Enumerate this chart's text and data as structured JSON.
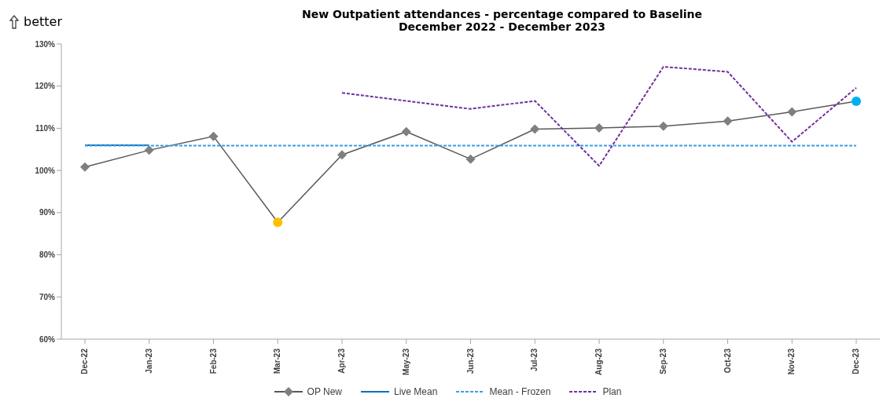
{
  "chart_data": {
    "type": "line",
    "title": "New Outpatient attendances - percentage compared to Baseline",
    "subtitle": "December 2022 - December 2023",
    "annotations": [
      "better"
    ],
    "categories": [
      "Dec-22",
      "Jan-23",
      "Feb-23",
      "Mar-23",
      "Apr-23",
      "May-23",
      "Jun-23",
      "Jul-23",
      "Aug-23",
      "Sep-23",
      "Oct-23",
      "Nov-23",
      "Dec-23"
    ],
    "series": [
      {
        "name": "OP New",
        "color": "#595959",
        "marker": "diamond",
        "values": [
          100.8,
          104.8,
          108.1,
          87.7,
          103.7,
          109.2,
          102.7,
          109.8,
          110.1,
          110.5,
          111.7,
          113.9,
          116.4
        ],
        "colors": [
          "#7f7f7f",
          "#7f7f7f",
          "#7f7f7f",
          "#ffc000",
          "#7f7f7f",
          "#7f7f7f",
          "#7f7f7f",
          "#7f7f7f",
          "#7f7f7f",
          "#7f7f7f",
          "#7f7f7f",
          "#7f7f7f",
          "#00b0f0"
        ]
      },
      {
        "name": "Live Mean",
        "color": "#0070c0",
        "line_style": "solid",
        "values": [
          106,
          106,
          null,
          null,
          null,
          null,
          null,
          null,
          null,
          null,
          null,
          null,
          null
        ]
      },
      {
        "name": "Mean - Frozen",
        "color": "#3a9ee4",
        "line_style": "dashed",
        "values": [
          105.9,
          105.9,
          105.9,
          105.9,
          105.9,
          105.9,
          105.9,
          105.9,
          105.9,
          105.9,
          105.9,
          105.9,
          105.9
        ]
      },
      {
        "name": "Plan",
        "color": "#7030a0",
        "line_style": "dashed",
        "values": [
          null,
          null,
          null,
          null,
          118.4,
          116.5,
          114.6,
          116.5,
          101.1,
          124.6,
          123.4,
          106.8,
          119.6
        ]
      }
    ],
    "ylim": [
      60,
      130
    ],
    "yticks": [
      {
        "value": 60,
        "label": "60%"
      },
      {
        "value": 70,
        "label": "70%"
      },
      {
        "value": 80,
        "label": "80%"
      },
      {
        "value": 90,
        "label": "90%"
      },
      {
        "value": 100,
        "label": "100%"
      },
      {
        "value": 110,
        "label": "110%"
      },
      {
        "value": 120,
        "label": "120%"
      },
      {
        "value": 130,
        "label": "130%"
      }
    ],
    "grid": false,
    "legend": "bottom"
  }
}
